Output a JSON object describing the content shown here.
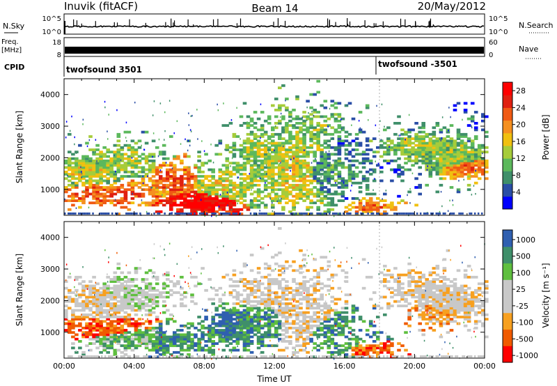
{
  "header": {
    "station": "Inuvik (fitACF)",
    "beam": "Beam 14",
    "date": "20/May/2012"
  },
  "strips": {
    "nsky": {
      "label": "N.Sky",
      "ticks": [
        "10^5",
        "10^0"
      ],
      "right_ticks": [
        "10^5",
        "10^0"
      ],
      "right_label": "N.Search"
    },
    "freq": {
      "label_line1": "Freq.",
      "label_line2": "[MHz]",
      "ticks": [
        "18",
        "8"
      ],
      "right_ticks": [
        "60",
        "0"
      ],
      "right_label": "Nave"
    },
    "cpid": {
      "label": "CPID",
      "segments": [
        "twofsound 3501",
        "twofsound -3501"
      ]
    }
  },
  "colors": {
    "power": [
      "#0000ff",
      "#2a4ea6",
      "#3f8f6a",
      "#5cb85c",
      "#a6cc3a",
      "#f0c010",
      "#f59020",
      "#f05a14",
      "#e02010",
      "#ff0000"
    ],
    "velocity": [
      "#ff0000",
      "#f05a00",
      "#f7a020",
      "#c8c8c8",
      "#c8c8c8",
      "#5fbf3f",
      "#3f8f6a",
      "#2f5fb0"
    ]
  },
  "chart_data": [
    {
      "type": "heatmap",
      "name": "power-panel",
      "xlabel": "",
      "ylabel": "Slant Range [km]",
      "xlim": [
        "00:00",
        "24:00"
      ],
      "ylim": [
        180,
        4500
      ],
      "x_ticks": [
        "00:00",
        "04:00",
        "08:00",
        "12:00",
        "16:00",
        "20:00",
        "00:00"
      ],
      "y_ticks": [
        1000,
        2000,
        3000,
        4000
      ],
      "colorbar": {
        "label": "Power [dB]",
        "ticks": [
          4,
          8,
          12,
          16,
          20,
          24,
          28
        ],
        "range": [
          0,
          30
        ]
      },
      "cell": [
        0.2,
        70
      ],
      "blobs": [
        {
          "t": 1.2,
          "r": 1500,
          "st": 1.4,
          "sr": 300,
          "v": 14,
          "d": 0.8
        },
        {
          "t": 3.2,
          "r": 1900,
          "st": 1.6,
          "sr": 350,
          "v": 13,
          "d": 0.75
        },
        {
          "t": 2.5,
          "r": 800,
          "st": 2.2,
          "sr": 250,
          "v": 22,
          "d": 0.7
        },
        {
          "t": 7.8,
          "r": 500,
          "st": 1.6,
          "sr": 280,
          "v": 28,
          "d": 0.95
        },
        {
          "t": 6.2,
          "r": 1300,
          "st": 1.0,
          "sr": 350,
          "v": 22,
          "d": 0.75
        },
        {
          "t": 9.5,
          "r": 1200,
          "st": 1.6,
          "sr": 500,
          "v": 14,
          "d": 0.6
        },
        {
          "t": 11.0,
          "r": 2300,
          "st": 1.2,
          "sr": 500,
          "v": 12,
          "d": 0.5
        },
        {
          "t": 13.0,
          "r": 1500,
          "st": 1.5,
          "sr": 1100,
          "v": 14,
          "d": 0.55
        },
        {
          "t": 14.5,
          "r": 3000,
          "st": 1.2,
          "sr": 450,
          "v": 11,
          "d": 0.4
        },
        {
          "t": 15.5,
          "r": 1500,
          "st": 1.8,
          "sr": 600,
          "v": 8,
          "d": 0.5
        },
        {
          "t": 17.4,
          "r": 400,
          "st": 1.0,
          "sr": 180,
          "v": 20,
          "d": 0.8
        },
        {
          "t": 20.3,
          "r": 2300,
          "st": 1.8,
          "sr": 350,
          "v": 12,
          "d": 0.75
        },
        {
          "t": 22.8,
          "r": 1650,
          "st": 1.2,
          "sr": 250,
          "v": 20,
          "d": 0.9
        },
        {
          "t": 22.0,
          "r": 2000,
          "st": 1.5,
          "sr": 400,
          "v": 12,
          "d": 0.7
        },
        {
          "t": 23.3,
          "r": 3300,
          "st": 0.6,
          "sr": 250,
          "v": 6,
          "d": 0.35
        }
      ]
    },
    {
      "type": "heatmap",
      "name": "velocity-panel",
      "xlabel": "Time UT",
      "ylabel": "Slant Range [km]",
      "xlim": [
        "00:00",
        "24:00"
      ],
      "ylim": [
        180,
        4500
      ],
      "x_ticks": [
        "00:00",
        "04:00",
        "08:00",
        "12:00",
        "16:00",
        "20:00",
        "00:00"
      ],
      "y_ticks": [
        1000,
        2000,
        3000,
        4000
      ],
      "colorbar": {
        "label": "Velocity [m s⁻¹]",
        "ticks": [
          "1000",
          "500",
          "100",
          "25",
          "-25",
          "-100",
          "-500",
          "-1000"
        ]
      },
      "cell": [
        0.2,
        70
      ],
      "blobs": [
        {
          "t": 1.5,
          "r": 1900,
          "st": 2.0,
          "sr": 400,
          "v": 3,
          "d": 0.7
        },
        {
          "t": 4.0,
          "r": 2200,
          "st": 1.6,
          "sr": 350,
          "v": 4,
          "d": 0.7
        },
        {
          "t": 1.8,
          "r": 1100,
          "st": 1.8,
          "sr": 280,
          "v": 1,
          "d": 0.65
        },
        {
          "t": 3.5,
          "r": 700,
          "st": 2.0,
          "sr": 250,
          "v": 5,
          "d": 0.6
        },
        {
          "t": 7.0,
          "r": 700,
          "st": 1.8,
          "sr": 300,
          "v": 6,
          "d": 0.75
        },
        {
          "t": 9.5,
          "r": 1200,
          "st": 0.8,
          "sr": 300,
          "v": 7,
          "d": 0.85
        },
        {
          "t": 10.8,
          "r": 1200,
          "st": 1.4,
          "sr": 500,
          "v": 6,
          "d": 0.6
        },
        {
          "t": 11.0,
          "r": 2300,
          "st": 1.2,
          "sr": 450,
          "v": 3,
          "d": 0.5
        },
        {
          "t": 13.5,
          "r": 1700,
          "st": 1.4,
          "sr": 900,
          "v": 3,
          "d": 0.5
        },
        {
          "t": 15.5,
          "r": 900,
          "st": 1.5,
          "sr": 500,
          "v": 6,
          "d": 0.45
        },
        {
          "t": 17.4,
          "r": 400,
          "st": 1.0,
          "sr": 180,
          "v": 1,
          "d": 0.8
        },
        {
          "t": 20.5,
          "r": 2300,
          "st": 1.8,
          "sr": 400,
          "v": 3,
          "d": 0.7
        },
        {
          "t": 22.5,
          "r": 1800,
          "st": 1.5,
          "sr": 350,
          "v": 3,
          "d": 0.75
        },
        {
          "t": 21.0,
          "r": 1500,
          "st": 1.0,
          "sr": 250,
          "v": 2,
          "d": 0.5
        }
      ]
    }
  ]
}
